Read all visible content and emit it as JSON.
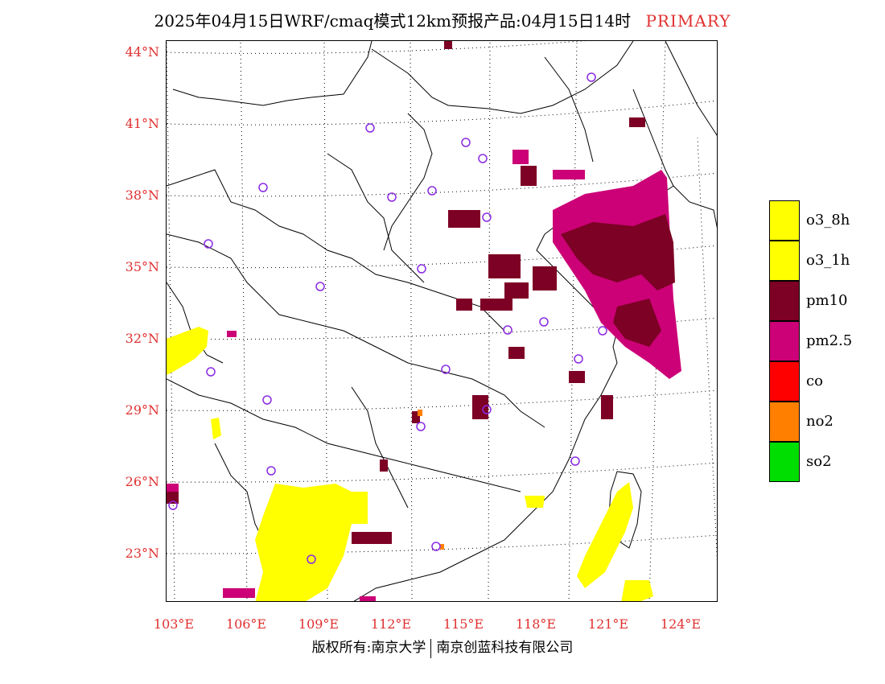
{
  "title": {
    "main": "2025年04月15日WRF/cmaq模式12km预报产品:04月15日14时",
    "mode": "PRIMARY"
  },
  "map": {
    "lat_labels": [
      "44°N",
      "41°N",
      "38°N",
      "35°N",
      "32°N",
      "29°N",
      "26°N",
      "23°N"
    ],
    "lon_labels": [
      "103°E",
      "106°E",
      "109°E",
      "112°E",
      "115°E",
      "118°E",
      "121°E",
      "124°E"
    ]
  },
  "legend": {
    "items": [
      {
        "label": "o3_8h",
        "color": "#ffff00"
      },
      {
        "label": "o3_1h",
        "color": "#ffff00"
      },
      {
        "label": "pm10",
        "color": "#7d0025"
      },
      {
        "label": "pm2.5",
        "color": "#cc0077"
      },
      {
        "label": "co",
        "color": "#ff0000"
      },
      {
        "label": "no2",
        "color": "#ff7f00"
      },
      {
        "label": "so2",
        "color": "#00dd00"
      }
    ]
  },
  "footer": {
    "left": "版权所有:南京大学",
    "right": "南京创蓝科技有限公司"
  },
  "colors": {
    "axis_label": "#e03030",
    "station": "#8a2be2"
  }
}
